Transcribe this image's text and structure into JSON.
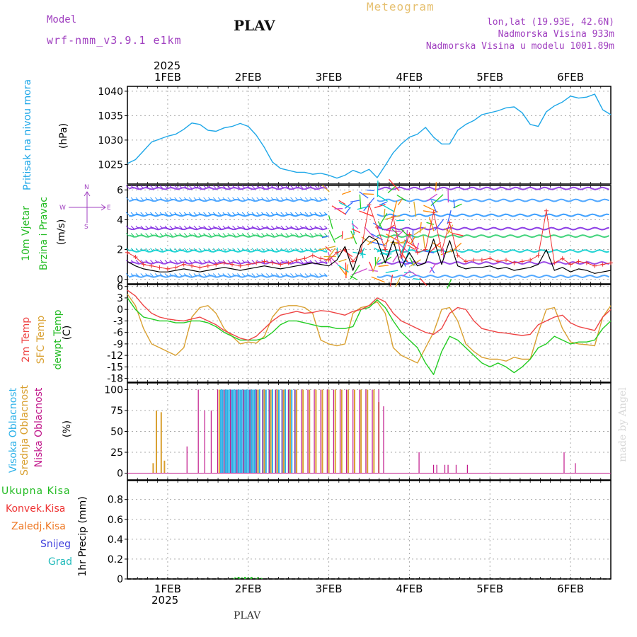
{
  "header": {
    "top_title": "Meteogram",
    "model_label": "Model",
    "model_name": "wrf-nmm_v3.9.1 e1km",
    "station": "PLAV",
    "lonlat": "lon,lat (19.93E, 42.6N)",
    "altitude": "Nadmorska Visina 933m",
    "model_altitude": "Nadmorska Visina u modelu 1001.89m",
    "year_top": "2025",
    "year_bottom": "2025",
    "footer_station": "PLAV",
    "credit": "made by Angel"
  },
  "colors": {
    "pressure": "#1ea7e8",
    "temp2m": "#ee4444",
    "sfc": "#d9a030",
    "dewpt": "#22cc22",
    "high_cloud": "#2ab0e8",
    "mid_cloud": "#d9a030",
    "low_cloud": "#c0168a",
    "title_gold": "#e6c070",
    "purple": "#a040c0",
    "total_rain": "#22bb22",
    "conv_rain": "#ee3333",
    "freezing_rain": "#ee7722",
    "snow": "#4444dd",
    "hail": "#22bbbb"
  },
  "chart_data": [
    {
      "type": "line",
      "name": "pressure",
      "ylabel_1": "Pritisak na nivou mora",
      "ylabel_2": "(hPa)",
      "yticks": [
        "1025",
        "1030",
        "1035",
        "1040"
      ],
      "ylim": [
        1021,
        1041
      ],
      "xlim": [
        0.5,
        6.5
      ],
      "xticks": [
        "1FEB",
        "2FEB",
        "3FEB",
        "4FEB",
        "5FEB",
        "6FEB"
      ],
      "x": [
        0.5,
        0.6,
        0.7,
        0.8,
        0.9,
        1.0,
        1.1,
        1.2,
        1.3,
        1.4,
        1.5,
        1.6,
        1.7,
        1.8,
        1.9,
        2.0,
        2.1,
        2.2,
        2.3,
        2.4,
        2.5,
        2.6,
        2.7,
        2.8,
        2.9,
        3.0,
        3.1,
        3.2,
        3.3,
        3.4,
        3.5,
        3.6,
        3.7,
        3.8,
        3.9,
        4.0,
        4.1,
        4.2,
        4.3,
        4.4,
        4.5,
        4.6,
        4.7,
        4.8,
        4.9,
        5.0,
        5.1,
        5.2,
        5.3,
        5.4,
        5.5,
        5.6,
        5.7,
        5.8,
        5.9,
        6.0,
        6.1,
        6.2,
        6.3,
        6.4,
        6.5
      ],
      "values": [
        1025.2,
        1026,
        1027.8,
        1029.6,
        1030.2,
        1030.8,
        1031.2,
        1032.2,
        1033.5,
        1033.2,
        1032,
        1031.8,
        1032.5,
        1032.8,
        1033.4,
        1032.8,
        1031,
        1028.5,
        1025.5,
        1024.2,
        1023.8,
        1023.4,
        1023.4,
        1023,
        1023.2,
        1022.8,
        1022.2,
        1022.8,
        1023.8,
        1023.2,
        1024,
        1022.3,
        1024.8,
        1027.4,
        1029.2,
        1030.6,
        1031.2,
        1032.6,
        1030.6,
        1029.2,
        1029.2,
        1032,
        1033.2,
        1034,
        1035.2,
        1035.6,
        1036,
        1036.6,
        1036.8,
        1035.6,
        1033.2,
        1032.8,
        1035.8,
        1037,
        1037.8,
        1039,
        1038.6,
        1038.8,
        1039.4,
        1036.2,
        1035.2
      ]
    },
    {
      "type": "line",
      "name": "wind",
      "ylabel_1": "10m Vjetar",
      "ylabel_2": "Brzina i Pravac",
      "ylabel_3": "(m/s)",
      "compass": {
        "n": "N",
        "s": "S",
        "w": "W",
        "e": "E"
      },
      "yticks": [
        "0",
        "2",
        "4",
        "6"
      ],
      "ylim": [
        -0.3,
        6.3
      ],
      "x": [
        0.5,
        0.6,
        0.7,
        0.8,
        0.9,
        1.0,
        1.1,
        1.2,
        1.3,
        1.4,
        1.5,
        1.6,
        1.7,
        1.8,
        1.9,
        2.0,
        2.1,
        2.2,
        2.3,
        2.4,
        2.5,
        2.6,
        2.7,
        2.8,
        2.9,
        3.0,
        3.1,
        3.2,
        3.3,
        3.4,
        3.5,
        3.6,
        3.7,
        3.8,
        3.9,
        4.0,
        4.1,
        4.2,
        4.3,
        4.4,
        4.5,
        4.6,
        4.7,
        4.8,
        4.9,
        5.0,
        5.1,
        5.2,
        5.3,
        5.4,
        5.5,
        5.6,
        5.7,
        5.8,
        5.9,
        6.0,
        6.1,
        6.2,
        6.3,
        6.4,
        6.5
      ],
      "speed": [
        1.2,
        0.9,
        0.7,
        0.6,
        0.5,
        0.5,
        0.6,
        0.7,
        0.6,
        0.5,
        0.6,
        0.7,
        0.8,
        0.7,
        0.6,
        0.7,
        0.8,
        0.9,
        0.8,
        0.7,
        0.8,
        0.9,
        1.0,
        1.1,
        1.0,
        0.9,
        1.3,
        2.2,
        0.6,
        2.3,
        2.9,
        2.6,
        1.1,
        2.6,
        0.8,
        1.8,
        0.9,
        1.1,
        2.7,
        1.0,
        2.6,
        0.9,
        0.7,
        0.8,
        0.8,
        0.9,
        0.7,
        0.8,
        0.6,
        0.7,
        0.8,
        1.0,
        2.0,
        0.6,
        0.8,
        0.5,
        0.7,
        0.6,
        0.4,
        0.5,
        0.6
      ],
      "gust": [
        1.8,
        1.5,
        1.0,
        0.9,
        0.8,
        0.7,
        0.8,
        1.0,
        0.9,
        0.8,
        0.9,
        1.0,
        1.1,
        1.0,
        0.9,
        1.0,
        1.1,
        1.2,
        1.1,
        1.0,
        1.1,
        1.3,
        1.4,
        1.6,
        1.4,
        1.3,
        1.8,
        2.0,
        1.2,
        1.9,
        5.0,
        3.5,
        2.0,
        4.2,
        1.5,
        3.0,
        1.8,
        2.0,
        4.5,
        1.9,
        3.8,
        1.6,
        1.2,
        1.3,
        1.3,
        1.4,
        1.2,
        1.3,
        1.1,
        1.2,
        1.3,
        1.6,
        4.6,
        1.1,
        1.4,
        1.0,
        1.2,
        1.1,
        0.9,
        1.0,
        1.1
      ]
    },
    {
      "type": "line",
      "name": "temperature",
      "ylabel_1": "2m Temp",
      "ylabel_2": "SFC Temp",
      "ylabel_3": "dewpt Temp",
      "ylabel_4": "(C)",
      "yticks": [
        "-18",
        "-15",
        "-12",
        "-9",
        "-6",
        "-3",
        "0",
        "3",
        "6"
      ],
      "ylim": [
        -19,
        6.5
      ],
      "x": [
        0.5,
        0.6,
        0.7,
        0.8,
        0.9,
        1.0,
        1.1,
        1.2,
        1.3,
        1.4,
        1.5,
        1.6,
        1.7,
        1.8,
        1.9,
        2.0,
        2.1,
        2.2,
        2.3,
        2.4,
        2.5,
        2.6,
        2.7,
        2.8,
        2.9,
        3.0,
        3.1,
        3.2,
        3.3,
        3.4,
        3.5,
        3.6,
        3.7,
        3.8,
        3.9,
        4.0,
        4.1,
        4.2,
        4.3,
        4.4,
        4.5,
        4.6,
        4.7,
        4.8,
        4.9,
        5.0,
        5.1,
        5.2,
        5.3,
        5.4,
        5.5,
        5.6,
        5.7,
        5.8,
        5.9,
        6.0,
        6.1,
        6.2,
        6.3,
        6.4,
        6.5
      ],
      "t2m": [
        5,
        3.5,
        1,
        -1,
        -2,
        -2.5,
        -2.8,
        -3,
        -2.5,
        -2,
        -3,
        -4,
        -5.5,
        -6.5,
        -7.5,
        -8,
        -7,
        -5,
        -3,
        -1.5,
        -1,
        -0.5,
        -1,
        -0.8,
        -0.3,
        -0.5,
        -1,
        -1.5,
        -0.5,
        0,
        1,
        3,
        2,
        -1,
        -3,
        -4,
        -5,
        -6,
        -6.5,
        -5,
        -1,
        0.5,
        0,
        -3,
        -5,
        -5.5,
        -6,
        -6.2,
        -6.5,
        -6.8,
        -6.5,
        -4,
        -3,
        -2,
        -1.5,
        -3.5,
        -4.5,
        -5,
        -5.5,
        -2,
        0
      ],
      "sfc": [
        4,
        1,
        -5,
        -9,
        -10,
        -11,
        -12,
        -10,
        -2,
        0.5,
        1,
        -1,
        -5,
        -7,
        -9,
        -8.5,
        -8.8,
        -7,
        -2,
        0.5,
        1,
        1,
        0.5,
        -1,
        -8,
        -9,
        -9.5,
        -9,
        -1,
        0.5,
        1,
        2,
        -1,
        -10,
        -12,
        -13,
        -14,
        -10,
        -6,
        0,
        0.5,
        -3,
        -9,
        -11,
        -12.5,
        -13,
        -13,
        -13.5,
        -12.5,
        -13,
        -13,
        -6,
        0,
        0.5,
        -5,
        -8.5,
        -9,
        -9.2,
        -9.5,
        -2,
        1
      ],
      "dewpt": [
        3,
        0,
        -2,
        -2.5,
        -3,
        -3,
        -3.5,
        -3.5,
        -3,
        -3,
        -3.5,
        -4.5,
        -6,
        -7,
        -8,
        -8,
        -8,
        -7.5,
        -6,
        -4,
        -3,
        -3,
        -3.5,
        -4,
        -4.5,
        -4.5,
        -5,
        -5,
        -4.5,
        0,
        0.5,
        2.5,
        0.5,
        -3,
        -6,
        -8,
        -10,
        -14,
        -17,
        -11,
        -7,
        -8,
        -10,
        -12,
        -14,
        -15,
        -14,
        -15,
        -16.5,
        -15,
        -13,
        -10,
        -9,
        -7,
        -8,
        -9,
        -8.5,
        -8.5,
        -8,
        -5,
        -3
      ]
    },
    {
      "type": "bar",
      "name": "clouds",
      "ylabel_1": "Visoka Oblacnost",
      "ylabel_2": "Srednja Oblacnost",
      "ylabel_3": "Niska Oblacnost",
      "ylabel_4": "(%)",
      "yticks": [
        "0",
        "25",
        "50",
        "75",
        "100"
      ],
      "ylim": [
        -8,
        108
      ],
      "high": [
        [
          1.66,
          100
        ],
        [
          1.68,
          100
        ],
        [
          1.7,
          100
        ],
        [
          1.72,
          100
        ],
        [
          1.74,
          100
        ],
        [
          1.76,
          100
        ],
        [
          1.78,
          100
        ],
        [
          1.8,
          100
        ],
        [
          1.82,
          100
        ],
        [
          1.84,
          100
        ],
        [
          1.86,
          100
        ],
        [
          1.88,
          100
        ],
        [
          1.9,
          100
        ],
        [
          1.92,
          100
        ],
        [
          1.94,
          100
        ],
        [
          1.96,
          100
        ],
        [
          1.98,
          100
        ],
        [
          2.0,
          100
        ],
        [
          2.02,
          100
        ],
        [
          2.04,
          100
        ],
        [
          2.06,
          100
        ],
        [
          2.08,
          100
        ],
        [
          2.1,
          100
        ],
        [
          2.14,
          100
        ],
        [
          2.18,
          100
        ],
        [
          2.22,
          100
        ],
        [
          2.26,
          100
        ],
        [
          2.3,
          100
        ],
        [
          2.34,
          100
        ],
        [
          2.38,
          100
        ],
        [
          2.42,
          100
        ],
        [
          2.46,
          100
        ],
        [
          2.5,
          100
        ],
        [
          2.54,
          100
        ],
        [
          2.58,
          100
        ]
      ],
      "mid": [
        [
          0.86,
          75
        ],
        [
          0.92,
          73
        ],
        [
          0.96,
          15
        ],
        [
          0.82,
          12
        ],
        [
          1.64,
          100
        ],
        [
          1.72,
          100
        ],
        [
          1.8,
          100
        ],
        [
          1.88,
          100
        ],
        [
          1.96,
          100
        ],
        [
          2.04,
          100
        ],
        [
          2.12,
          100
        ],
        [
          2.2,
          100
        ],
        [
          2.28,
          100
        ],
        [
          2.36,
          100
        ],
        [
          2.44,
          100
        ],
        [
          2.52,
          100
        ],
        [
          2.6,
          100
        ],
        [
          2.68,
          100
        ],
        [
          2.76,
          100
        ],
        [
          2.84,
          100
        ],
        [
          2.92,
          100
        ],
        [
          3.0,
          100
        ],
        [
          3.08,
          100
        ],
        [
          3.16,
          100
        ],
        [
          3.24,
          100
        ],
        [
          3.32,
          100
        ],
        [
          3.4,
          100
        ],
        [
          3.48,
          100
        ],
        [
          3.56,
          100
        ],
        [
          3.62,
          85
        ]
      ],
      "low": [
        [
          1.24,
          32
        ],
        [
          1.38,
          100
        ],
        [
          1.46,
          75
        ],
        [
          1.54,
          75
        ],
        [
          1.62,
          100
        ],
        [
          1.7,
          100
        ],
        [
          1.78,
          100
        ],
        [
          1.86,
          100
        ],
        [
          1.94,
          100
        ],
        [
          2.02,
          100
        ],
        [
          2.1,
          100
        ],
        [
          2.18,
          100
        ],
        [
          2.26,
          100
        ],
        [
          2.34,
          100
        ],
        [
          2.42,
          100
        ],
        [
          2.5,
          100
        ],
        [
          2.58,
          100
        ],
        [
          2.66,
          100
        ],
        [
          2.74,
          100
        ],
        [
          2.82,
          100
        ],
        [
          2.9,
          100
        ],
        [
          2.98,
          100
        ],
        [
          3.06,
          100
        ],
        [
          3.14,
          100
        ],
        [
          3.22,
          100
        ],
        [
          3.3,
          100
        ],
        [
          3.38,
          100
        ],
        [
          3.46,
          100
        ],
        [
          3.54,
          100
        ],
        [
          3.62,
          100
        ],
        [
          3.68,
          80
        ],
        [
          4.12,
          25
        ],
        [
          4.3,
          10
        ],
        [
          4.34,
          10
        ],
        [
          4.44,
          10
        ],
        [
          4.48,
          10
        ],
        [
          4.58,
          10
        ],
        [
          4.72,
          10
        ],
        [
          5.92,
          25
        ],
        [
          6.06,
          12
        ]
      ]
    },
    {
      "type": "bar",
      "name": "precipitation",
      "ylabel_main": "1hr Precip (mm)",
      "legend": [
        "Ukupna Kisa",
        "Konvek.Kisa",
        "Zaledj.Kisa",
        "Snijeg",
        "Grad"
      ],
      "yticks": [
        "0",
        "0.2",
        "0.4",
        "0.6",
        "0.8"
      ],
      "ylim": [
        0,
        0.99
      ],
      "xticks": [
        "1FEB",
        "2FEB",
        "3FEB",
        "4FEB",
        "5FEB",
        "6FEB"
      ],
      "total_rain": [
        [
          1.8,
          0.01
        ],
        [
          1.84,
          0.015
        ],
        [
          1.88,
          0.02
        ],
        [
          1.92,
          0.015
        ],
        [
          1.96,
          0.02
        ],
        [
          2.0,
          0.015
        ],
        [
          2.04,
          0.02
        ],
        [
          2.08,
          0.01
        ],
        [
          2.12,
          0.015
        ],
        [
          2.16,
          0.01
        ]
      ]
    }
  ]
}
